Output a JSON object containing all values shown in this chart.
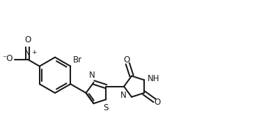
{
  "bg_color": "#ffffff",
  "line_color": "#1a1a1a",
  "line_width": 1.5,
  "font_size": 8.5,
  "xlim": [
    0,
    7.9
  ],
  "ylim": [
    0,
    3.72
  ]
}
